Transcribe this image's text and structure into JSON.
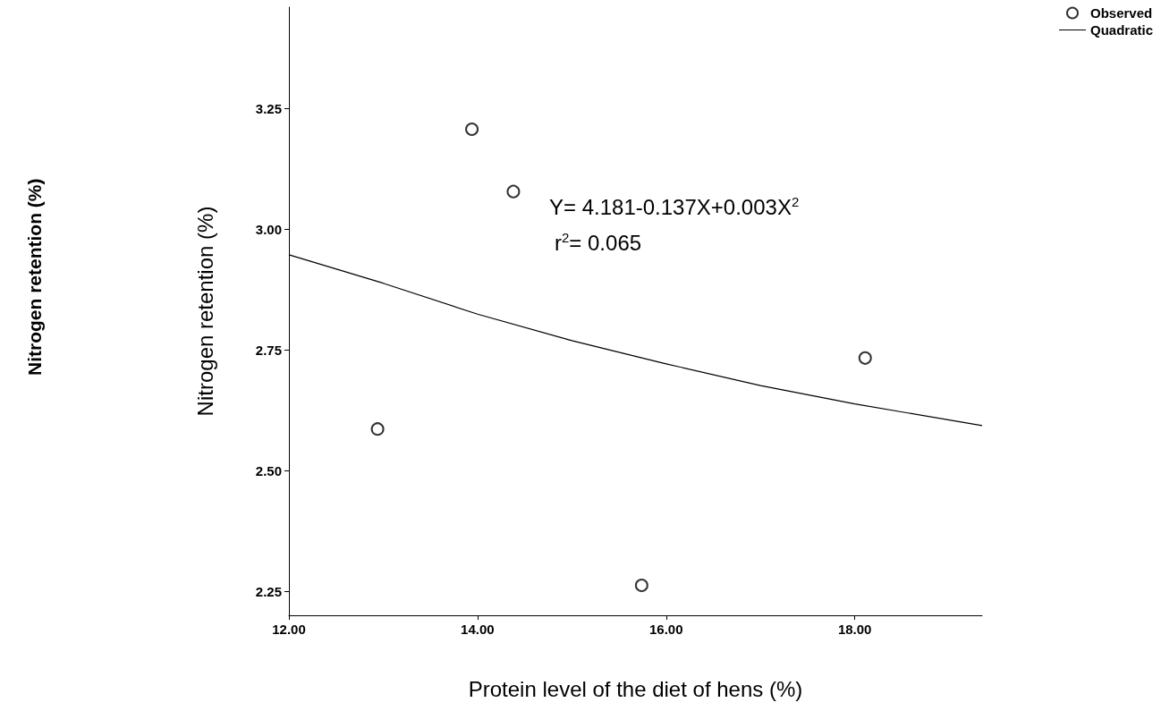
{
  "chart_data": {
    "type": "scatter",
    "xlabel": "Protein level of the diet of hens (%)",
    "ylabel": "Nitrogen retention (%)",
    "annotations": [
      "Nitrogen retention (%)",
      "Y= 4.181-0.137X+0.003X$^{2}$",
      "r$^{2}$= 0.065"
    ],
    "xlim": [
      12,
      19.35
    ],
    "ylim": [
      2.2,
      3.46
    ],
    "xticks": [
      {
        "value": 12,
        "label": "12.00"
      },
      {
        "value": 14,
        "label": "14.00"
      },
      {
        "value": 16,
        "label": "16.00"
      },
      {
        "value": 18,
        "label": "18.00"
      }
    ],
    "yticks": [
      {
        "value": 2.25,
        "label": "2.25"
      },
      {
        "value": 2.5,
        "label": "2.50"
      },
      {
        "value": 2.75,
        "label": "2.75"
      },
      {
        "value": 3,
        "label": "3.00"
      },
      {
        "value": 3.25,
        "label": "3.25"
      }
    ],
    "grid": false,
    "legend": "top right",
    "series": [
      {
        "name": "Observed",
        "marker": "circle",
        "color": "#000000",
        "x": [
          12.94,
          13.94,
          14.38,
          15.74,
          18.11
        ],
        "values": [
          2.586,
          3.207,
          3.078,
          2.262,
          2.733
        ]
      },
      {
        "name": "Quadratic",
        "type": "line",
        "marker": "none",
        "line_style": "solid",
        "color": "#000000",
        "x": [
          12,
          13,
          14,
          15,
          16,
          17,
          18,
          19.35
        ],
        "values": [
          2.947,
          2.888,
          2.824,
          2.769,
          2.721,
          2.676,
          2.638,
          2.593
        ]
      }
    ]
  }
}
